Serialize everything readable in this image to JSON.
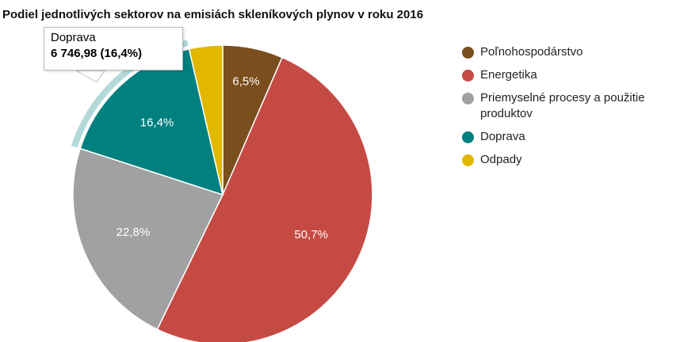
{
  "chart_data": {
    "type": "pie",
    "title": "Podiel jednotlivých sektorov na emisiách skleníkových plynov v roku 2016",
    "categories": [
      "Poľnohospodárstvo",
      "Energetika",
      "Priemyselné procesy a použitie produktov",
      "Doprava",
      "Odpady"
    ],
    "values": [
      6.5,
      50.7,
      22.8,
      16.4,
      3.6
    ],
    "value_labels": [
      "6,5%",
      "50,7%",
      "22,8%",
      "16,4%",
      null
    ],
    "colors": [
      "#7a4e1d",
      "#c64a44",
      "#a1a1a3",
      "#00807f",
      "#e2b700"
    ],
    "tooltip": {
      "title": "Doprava",
      "text": "6 746,98 (16,4%)"
    }
  }
}
